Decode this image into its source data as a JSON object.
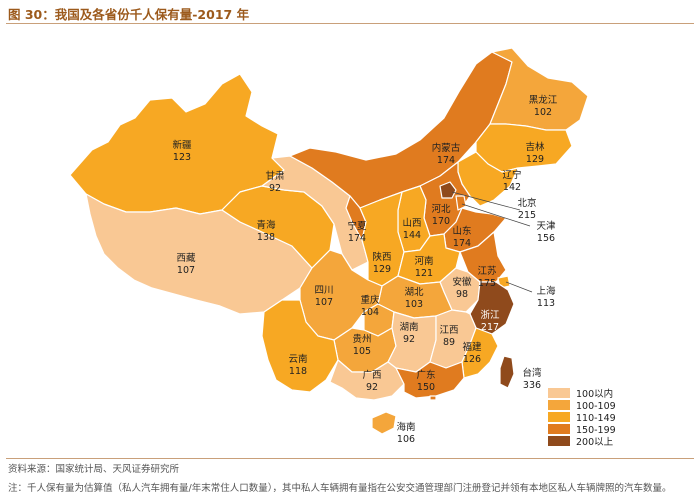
{
  "title": "图 30：我国及各省份千人保有量-2017 年",
  "source": "资料来源：国家统计局、天风证券研究所",
  "note": "注：千人保有量为估算值（私人汽车拥有量/年末常住人口数量），其中私人车辆拥有量指在公安交通管理部门注册登记并领有本地区私人车辆牌照的汽车数量。",
  "colors": {
    "bin_100_below": "#f9c894",
    "bin_100_109": "#f4a63b",
    "bin_110_149": "#f7a823",
    "bin_150_199": "#e07b1f",
    "bin_200_above": "#8f4a1c"
  },
  "legend": [
    {
      "label": "100以内",
      "color": "#f9c894"
    },
    {
      "label": "100-109",
      "color": "#f4a63b"
    },
    {
      "label": "110-149",
      "color": "#f7a823"
    },
    {
      "label": "150-199",
      "color": "#e07b1f"
    },
    {
      "label": "200以上",
      "color": "#8f4a1c"
    }
  ],
  "provinces": {
    "xinjiang": {
      "name": "新疆",
      "value": "123"
    },
    "xizang": {
      "name": "西藏",
      "value": "107"
    },
    "qinghai": {
      "name": "青海",
      "value": "138"
    },
    "gansu": {
      "name": "甘肃",
      "value": "92"
    },
    "neimenggu": {
      "name": "内蒙古",
      "value": "174"
    },
    "heilongjiang": {
      "name": "黑龙江",
      "value": "102"
    },
    "jilin": {
      "name": "吉林",
      "value": "129"
    },
    "liaoning": {
      "name": "辽宁",
      "value": "142"
    },
    "beijing": {
      "name": "北京",
      "value": "215"
    },
    "tianjin": {
      "name": "天津",
      "value": "156"
    },
    "hebei": {
      "name": "河北",
      "value": "170"
    },
    "shanxi": {
      "name": "山西",
      "value": "144"
    },
    "shandong": {
      "name": "山东",
      "value": "174"
    },
    "ningxia": {
      "name": "宁夏",
      "value": "174"
    },
    "shaanxi": {
      "name": "陕西",
      "value": "129"
    },
    "henan": {
      "name": "河南",
      "value": "121"
    },
    "jiangsu": {
      "name": "江苏",
      "value": "175"
    },
    "shanghai": {
      "name": "上海",
      "value": "113"
    },
    "anhui": {
      "name": "安徽",
      "value": "98"
    },
    "zhejiang": {
      "name": "浙江",
      "value": "217"
    },
    "hubei": {
      "name": "湖北",
      "value": "103"
    },
    "sichuan": {
      "name": "四川",
      "value": "107"
    },
    "chongqing": {
      "name": "重庆",
      "value": "104"
    },
    "guizhou": {
      "name": "贵州",
      "value": "105"
    },
    "hunan": {
      "name": "湖南",
      "value": "92"
    },
    "jiangxi": {
      "name": "江西",
      "value": "89"
    },
    "fujian": {
      "name": "福建",
      "value": "126"
    },
    "yunnan": {
      "name": "云南",
      "value": "118"
    },
    "guangxi": {
      "name": "广西",
      "value": "92"
    },
    "guangdong": {
      "name": "广东",
      "value": "150"
    },
    "taiwan": {
      "name": "台湾",
      "value": "336"
    },
    "hainan": {
      "name": "海南",
      "value": "106"
    }
  }
}
